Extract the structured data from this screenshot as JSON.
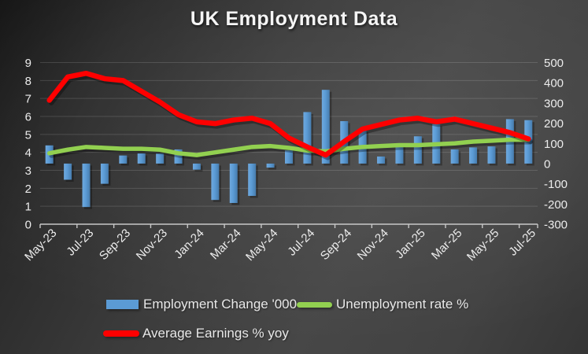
{
  "title": "UK Employment Data",
  "chart_data": {
    "type": "combo-bar-line",
    "title": "UK Employment Data",
    "categories": [
      "May-23",
      "Jun-23",
      "Jul-23",
      "Aug-23",
      "Sep-23",
      "Oct-23",
      "Nov-23",
      "Dec-23",
      "Jan-24",
      "Feb-24",
      "Mar-24",
      "Apr-24",
      "May-24",
      "Jun-24",
      "Jul-24",
      "Aug-24",
      "Sep-24",
      "Oct-24",
      "Nov-24",
      "Dec-24",
      "Jan-25",
      "Feb-25",
      "Mar-25",
      "Apr-25",
      "May-25",
      "Jun-25",
      "Jul-25"
    ],
    "x_tick_labels": [
      "May-23",
      "Jul-23",
      "Sep-23",
      "Nov-23",
      "Jan-24",
      "Mar-24",
      "May-24",
      "Jul-24",
      "Sep-24",
      "Nov-24",
      "Jan-25",
      "Mar-25",
      "May-25",
      "Jul-25"
    ],
    "series": [
      {
        "name": "Employment Change '000",
        "type": "bar",
        "axis": "right",
        "color": "#5B9BD5",
        "values": [
          90,
          -80,
          -215,
          -100,
          40,
          50,
          50,
          70,
          -30,
          -180,
          -195,
          -160,
          -20,
          65,
          255,
          365,
          210,
          165,
          35,
          100,
          135,
          195,
          70,
          80,
          85,
          220,
          215
        ]
      },
      {
        "name": "Unemployment rate %",
        "type": "line",
        "axis": "left",
        "color": "#92D050",
        "values": [
          3.95,
          4.15,
          4.3,
          4.25,
          4.2,
          4.2,
          4.15,
          3.95,
          3.85,
          4.0,
          4.15,
          4.3,
          4.35,
          4.25,
          4.1,
          4.05,
          4.2,
          4.3,
          4.35,
          4.4,
          4.4,
          4.45,
          4.5,
          4.6,
          4.65,
          4.7,
          4.7
        ]
      },
      {
        "name": "Average Earnings % yoy",
        "type": "line",
        "axis": "left",
        "color": "#FF0000",
        "values": [
          6.9,
          8.2,
          8.4,
          8.1,
          8.0,
          7.4,
          6.8,
          6.1,
          5.7,
          5.6,
          5.8,
          5.9,
          5.6,
          4.8,
          4.3,
          3.85,
          4.6,
          5.3,
          5.55,
          5.8,
          5.9,
          5.7,
          5.85,
          5.6,
          5.35,
          5.1,
          4.75
        ]
      }
    ],
    "left_axis": {
      "min": 0,
      "max": 9,
      "ticks": [
        9,
        8,
        7,
        6,
        5,
        4,
        3,
        2,
        1,
        0
      ]
    },
    "right_axis": {
      "min": -300,
      "max": 500,
      "ticks": [
        500,
        400,
        300,
        200,
        100,
        0,
        -100,
        -200,
        -300
      ]
    },
    "grid": "horizontal",
    "legend_position": "bottom",
    "colors": {
      "axis_text": "#ececec",
      "gridline": "rgba(255,255,255,0.14)",
      "axis_line": "#c8c8c8"
    }
  }
}
